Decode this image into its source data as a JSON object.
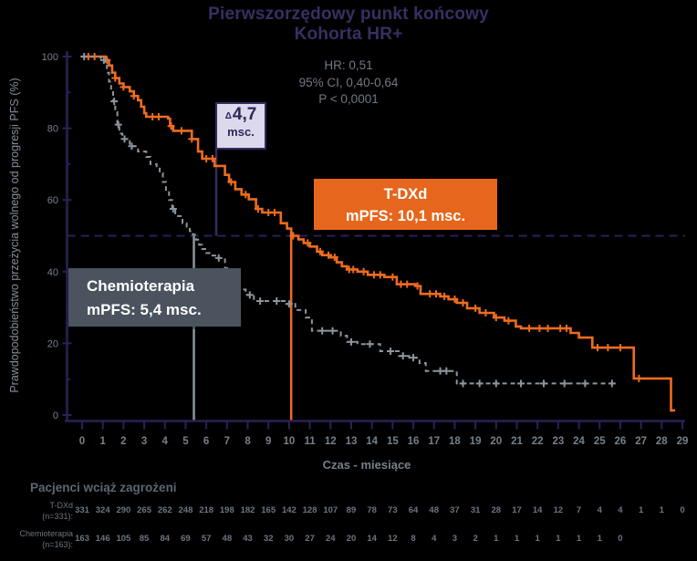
{
  "colors": {
    "background": "#000000",
    "axis": "#2b2156",
    "title": "#3a2e62",
    "stats_text": "#6f7982",
    "tick_text": "#76808a",
    "axis_label_text": "#848e96",
    "at_risk_text": "#6b757f",
    "at_risk_header_text": "#5d6771",
    "tdxd_orange": "#ee6c1e",
    "tdxd_box_bg": "#e5661c",
    "chemo_gray": "#8c959c",
    "chemo_box_bg": "#4a535e",
    "delta_box_bg": "#dcd9ec",
    "delta_box_border": "#352c5f",
    "delta_text": "#2f2659",
    "box_text": "#ffffff"
  },
  "title": {
    "line1": "Pierwszorzędowy punkt końcowy",
    "line2": "Kohorta HR+"
  },
  "stats": {
    "hr": "HR: 0,51",
    "ci": "95% CI, 0,40-0,64",
    "p": "P < 0,0001"
  },
  "annotations": {
    "delta": {
      "symbol": "Δ",
      "value": "4,7",
      "unit": "msc."
    },
    "tdxd_box": {
      "line1": "T-DXd",
      "line2": "mPFS: 10,1 msc."
    },
    "chemo_box": {
      "line1": "Chemioterapia",
      "line2": "mPFS: 5,4 msc."
    }
  },
  "at_risk": {
    "header": "Pacjenci wciąż zagrożeni",
    "rows": [
      {
        "label1": "T-DXd",
        "label2": "(n=331):",
        "values": [
          331,
          324,
          290,
          265,
          262,
          248,
          218,
          198,
          182,
          165,
          142,
          128,
          107,
          89,
          78,
          73,
          64,
          48,
          37,
          31,
          28,
          17,
          14,
          12,
          7,
          4,
          4,
          1,
          1,
          0
        ]
      },
      {
        "label1": "Chemioterapia",
        "label2": "(n=163):",
        "values": [
          163,
          146,
          105,
          85,
          84,
          69,
          57,
          48,
          43,
          32,
          30,
          27,
          24,
          20,
          14,
          12,
          8,
          4,
          3,
          2,
          1,
          1,
          1,
          1,
          1,
          1,
          0
        ]
      }
    ]
  },
  "chart_data": {
    "type": "line",
    "subtype": "kaplan-meier",
    "title": "Pierwszorzędowy punkt końcowy — Kohorta HR+",
    "xlabel": "Czas - miesiące",
    "ylabel": "Prawdopodobieństwo przeżycia wolnego od progresji PFS (%)",
    "xlim": [
      0,
      29
    ],
    "ylim": [
      0,
      100
    ],
    "x_ticks": [
      0,
      1,
      2,
      3,
      4,
      5,
      6,
      7,
      8,
      9,
      10,
      11,
      12,
      13,
      14,
      15,
      16,
      17,
      18,
      19,
      20,
      21,
      22,
      23,
      24,
      25,
      26,
      27,
      28,
      29
    ],
    "y_ticks": [
      0,
      20,
      40,
      60,
      80,
      100
    ],
    "y_minor_ticks": [
      10,
      30,
      50,
      70,
      90
    ],
    "reference_line_y": 50,
    "grid": false,
    "hazard_ratio": "0,51",
    "ci_95": "0,40-0,64",
    "p_value": "< 0,0001",
    "delta_median_months": "4,7",
    "series": [
      {
        "name": "T-DXd",
        "median_pfs_months": 10.1,
        "color": "#ee6c1e",
        "style": "solid",
        "end_x": 28.65,
        "steps": [
          [
            0,
            100
          ],
          [
            1.15,
            99
          ],
          [
            1.3,
            97.5
          ],
          [
            1.45,
            95.5
          ],
          [
            1.6,
            94
          ],
          [
            1.8,
            92.5
          ],
          [
            2.0,
            91.5
          ],
          [
            2.3,
            90.3
          ],
          [
            2.5,
            89
          ],
          [
            2.7,
            87.8
          ],
          [
            2.85,
            86
          ],
          [
            3.0,
            84.2
          ],
          [
            3.1,
            83.2
          ],
          [
            4.15,
            82.7
          ],
          [
            4.25,
            80.6
          ],
          [
            4.4,
            79.3
          ],
          [
            5.3,
            77
          ],
          [
            5.6,
            73.5
          ],
          [
            5.8,
            71.5
          ],
          [
            6.4,
            69.5
          ],
          [
            6.9,
            67
          ],
          [
            7.1,
            65
          ],
          [
            7.4,
            63
          ],
          [
            7.7,
            61.5
          ],
          [
            8.05,
            60.2
          ],
          [
            8.4,
            57.5
          ],
          [
            8.7,
            56.5
          ],
          [
            9.6,
            53.5
          ],
          [
            9.9,
            52
          ],
          [
            10.1,
            50
          ],
          [
            10.45,
            49
          ],
          [
            10.7,
            48
          ],
          [
            11.0,
            47
          ],
          [
            11.35,
            45.6
          ],
          [
            11.6,
            44.6
          ],
          [
            12.0,
            44
          ],
          [
            12.3,
            42.6
          ],
          [
            12.55,
            41.5
          ],
          [
            12.8,
            40.6
          ],
          [
            13.3,
            40
          ],
          [
            13.8,
            39.1
          ],
          [
            14.6,
            38.5
          ],
          [
            15.2,
            36.5
          ],
          [
            16.1,
            36
          ],
          [
            16.35,
            33.8
          ],
          [
            17.3,
            33.1
          ],
          [
            17.7,
            32.3
          ],
          [
            18.1,
            31.3
          ],
          [
            18.6,
            29.8
          ],
          [
            19.2,
            28.5
          ],
          [
            19.9,
            27.2
          ],
          [
            20.4,
            26.3
          ],
          [
            20.95,
            24.7
          ],
          [
            21.2,
            24.2
          ],
          [
            23.6,
            22.9
          ],
          [
            24.0,
            21.6
          ],
          [
            24.65,
            18.8
          ],
          [
            26.65,
            10.2
          ],
          [
            28.45,
            1.3
          ]
        ],
        "censors": [
          0.3,
          0.6,
          1.2,
          1.6,
          2.0,
          2.5,
          3.4,
          3.7,
          4.3,
          4.8,
          5.3,
          6.0,
          6.3,
          7.2,
          7.9,
          8.5,
          9.0,
          9.3,
          10.2,
          10.9,
          11.5,
          11.9,
          12.2,
          12.9,
          13.1,
          13.6,
          14.1,
          14.4,
          15.0,
          15.4,
          15.7,
          16.2,
          16.8,
          17.1,
          17.5,
          18.0,
          18.4,
          19.0,
          19.5,
          20.0,
          20.6,
          21.6,
          22.1,
          22.5,
          23.1,
          23.4,
          24.9,
          25.4,
          26.0,
          26.9
        ]
      },
      {
        "name": "Chemioterapia",
        "median_pfs_months": 5.4,
        "color": "#8c959c",
        "style": "dashed",
        "end_x": 25.7,
        "steps": [
          [
            0,
            100
          ],
          [
            0.9,
            99
          ],
          [
            1.1,
            97.5
          ],
          [
            1.2,
            95.5
          ],
          [
            1.3,
            93
          ],
          [
            1.4,
            90.5
          ],
          [
            1.5,
            87.5
          ],
          [
            1.6,
            84.5
          ],
          [
            1.7,
            81
          ],
          [
            1.8,
            78.5
          ],
          [
            1.95,
            77
          ],
          [
            2.3,
            75
          ],
          [
            2.7,
            73.5
          ],
          [
            3.1,
            72
          ],
          [
            3.3,
            70
          ],
          [
            3.6,
            69.4
          ],
          [
            3.75,
            67.5
          ],
          [
            3.9,
            65
          ],
          [
            4.05,
            62.5
          ],
          [
            4.2,
            60
          ],
          [
            4.35,
            57.5
          ],
          [
            4.5,
            55.5
          ],
          [
            4.85,
            53.5
          ],
          [
            5.05,
            52.2
          ],
          [
            5.2,
            51.3
          ],
          [
            5.35,
            50.3
          ],
          [
            5.5,
            48.9
          ],
          [
            5.65,
            47.5
          ],
          [
            5.8,
            46.3
          ],
          [
            6.0,
            45.2
          ],
          [
            6.15,
            44.5
          ],
          [
            6.5,
            43.8
          ],
          [
            6.9,
            41
          ],
          [
            7.1,
            39
          ],
          [
            7.4,
            37
          ],
          [
            7.6,
            35
          ],
          [
            7.9,
            33.5
          ],
          [
            8.3,
            31.8
          ],
          [
            9.9,
            31
          ],
          [
            10.3,
            29.3
          ],
          [
            10.8,
            27.2
          ],
          [
            11.1,
            23.5
          ],
          [
            12.5,
            22.1
          ],
          [
            12.8,
            20.4
          ],
          [
            13.3,
            19.8
          ],
          [
            14.4,
            17.8
          ],
          [
            15.3,
            16.5
          ],
          [
            15.8,
            16
          ],
          [
            16.3,
            14.5
          ],
          [
            16.6,
            12.3
          ],
          [
            18.1,
            8.8
          ]
        ],
        "censors": [
          0.1,
          1.05,
          1.55,
          1.75,
          2.05,
          2.4,
          4.4,
          6.6,
          8.1,
          8.6,
          9.4,
          10.0,
          11.6,
          12.1,
          13.0,
          13.9,
          14.9,
          15.5,
          16.0,
          17.3,
          17.6,
          18.4,
          19.2,
          20.0,
          21.2,
          22.3,
          23.3,
          24.3,
          25.6
        ]
      }
    ]
  }
}
